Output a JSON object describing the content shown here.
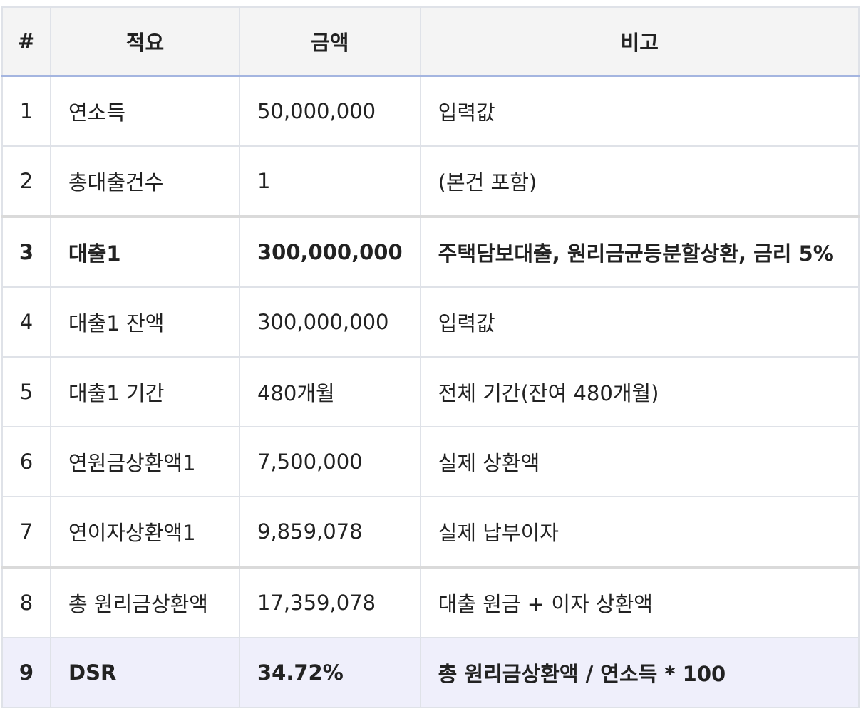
{
  "headers": [
    "#",
    "적요",
    "금액",
    "비고"
  ],
  "rows": [
    {
      "no": "1",
      "item": "연소득",
      "amount": "50,000,000",
      "note": "입력값"
    },
    {
      "no": "2",
      "item": "총대출건수",
      "amount": "1",
      "note": "(본건 포함)"
    },
    {
      "no": "3",
      "item": "대출1",
      "amount": "300,000,000",
      "note": "주택담보대출, 원리금균등분할상환, 금리 5%"
    },
    {
      "no": "4",
      "item": "대출1 잔액",
      "amount": "300,000,000",
      "note": "입력값"
    },
    {
      "no": "5",
      "item": "대출1 기간",
      "amount": "480개월",
      "note": "전체 기간(잔여 480개월)"
    },
    {
      "no": "6",
      "item": "연원금상환액1",
      "amount": "7,500,000",
      "note": "실제 상환액"
    },
    {
      "no": "7",
      "item": "연이자상환액1",
      "amount": "9,859,078",
      "note": "실제 납부이자"
    },
    {
      "no": "8",
      "item": "총 원리금상환액",
      "amount": "17,359,078",
      "note": "대출 원금 + 이자 상환액"
    },
    {
      "no": "9",
      "item": "DSR",
      "amount": "34.72%",
      "note": "총 원리금상환액 / 연소득 * 100"
    }
  ],
  "colors": {
    "header_bg": "#f4f4f4",
    "header_border": "#a4b5e0",
    "highlight_bg": "#efeffb",
    "border": "#dfe2e8"
  }
}
